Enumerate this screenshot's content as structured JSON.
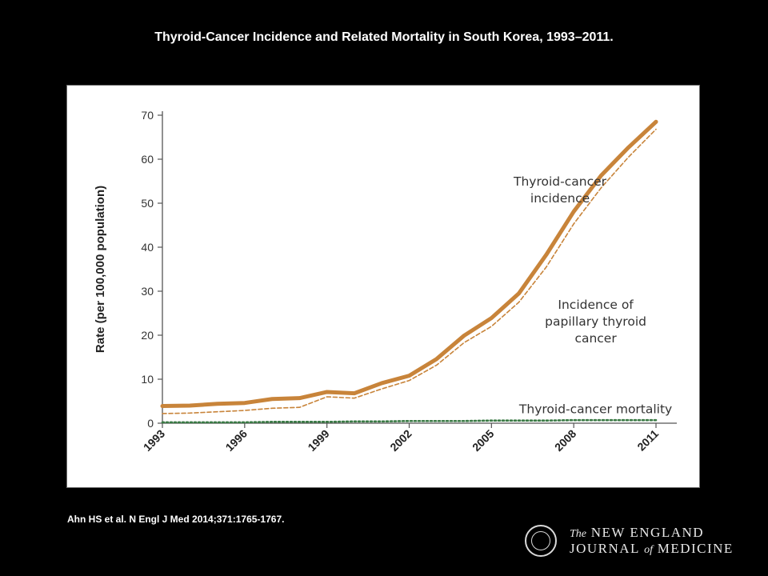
{
  "slide": {
    "title": "Thyroid-Cancer Incidence and Related Mortality in South Korea, 1993–2011.",
    "citation": "Ahn HS et al. N Engl J Med 2014;371:1765-1767."
  },
  "journal": {
    "line1_prefix": "The",
    "line1_main": "NEW ENGLAND",
    "line2_main": "JOURNAL",
    "line2_small": "of",
    "line2_end": "MEDICINE"
  },
  "chart_data": {
    "type": "line",
    "title": "",
    "xlabel": "",
    "ylabel": "Rate (per 100,000 population)",
    "xlim": [
      1993,
      2011
    ],
    "ylim": [
      0,
      70
    ],
    "x_ticks": [
      1993,
      1996,
      1999,
      2002,
      2005,
      2008,
      2011
    ],
    "y_ticks": [
      0,
      10,
      20,
      30,
      40,
      50,
      60,
      70
    ],
    "grid": false,
    "x": [
      1993,
      1994,
      1995,
      1996,
      1997,
      1998,
      1999,
      2000,
      2001,
      2002,
      2003,
      2004,
      2005,
      2006,
      2007,
      2008,
      2009,
      2010,
      2011
    ],
    "series": [
      {
        "name": "Thyroid-cancer incidence",
        "values": [
          3.9,
          4.0,
          4.4,
          4.6,
          5.5,
          5.7,
          7.1,
          6.8,
          9.1,
          10.8,
          14.6,
          19.9,
          23.9,
          29.5,
          38.3,
          48.1,
          56.3,
          62.7,
          68.5
        ],
        "style": "solid",
        "color": "#c8843a"
      },
      {
        "name": "Incidence of papillary thyroid cancer",
        "values": [
          2.2,
          2.3,
          2.6,
          2.9,
          3.4,
          3.6,
          6.0,
          5.7,
          7.8,
          9.7,
          13.2,
          18.3,
          22.0,
          27.5,
          35.5,
          45.3,
          53.5,
          60.5,
          66.8
        ],
        "style": "dashed",
        "color": "#c8843a"
      },
      {
        "name": "Thyroid-cancer mortality",
        "values": [
          0.2,
          0.2,
          0.2,
          0.2,
          0.3,
          0.3,
          0.3,
          0.4,
          0.4,
          0.5,
          0.5,
          0.5,
          0.6,
          0.6,
          0.6,
          0.7,
          0.7,
          0.7,
          0.7
        ],
        "style": "dotted",
        "color": "#3a7a45"
      }
    ],
    "annotations": [
      {
        "series": 0,
        "lines": [
          "Thyroid-cancer",
          "incidence"
        ],
        "at_x": 2007.5,
        "at_y": 54
      },
      {
        "series": 1,
        "lines": [
          "Incidence of",
          "papillary thyroid",
          "cancer"
        ],
        "at_x": 2008.8,
        "at_y": 26
      },
      {
        "series": 2,
        "lines": [
          "Thyroid-cancer mortality"
        ],
        "at_x": 2008.8,
        "at_y": 2.3
      }
    ]
  }
}
